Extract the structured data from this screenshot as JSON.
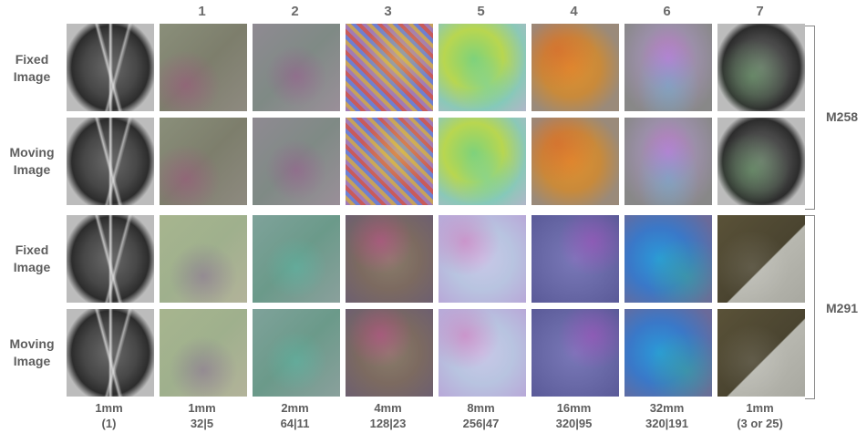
{
  "columns": [
    {
      "header": "",
      "foot_top": "1mm",
      "foot_bottom": "(1)"
    },
    {
      "header": "1",
      "foot_top": "1mm",
      "foot_bottom": "32|5"
    },
    {
      "header": "2",
      "foot_top": "2mm",
      "foot_bottom": "64|11"
    },
    {
      "header": "3",
      "foot_top": "4mm",
      "foot_bottom": "128|23"
    },
    {
      "header": "5",
      "foot_top": "8mm",
      "foot_bottom": "256|47"
    },
    {
      "header": "4",
      "foot_top": "16mm",
      "foot_bottom": "320|95"
    },
    {
      "header": "6",
      "foot_top": "32mm",
      "foot_bottom": "320|191"
    },
    {
      "header": "7",
      "foot_top": "1mm",
      "foot_bottom": "(3 or 25)"
    }
  ],
  "rows": [
    {
      "label_line1": "Fixed",
      "label_line2": "Image"
    },
    {
      "label_line1": "Moving",
      "label_line2": "Image"
    },
    {
      "label_line1": "Fixed",
      "label_line2": "Image"
    },
    {
      "label_line1": "Moving",
      "label_line2": "Image"
    }
  ],
  "groups": [
    {
      "name": "M258"
    },
    {
      "name": "M291"
    }
  ]
}
